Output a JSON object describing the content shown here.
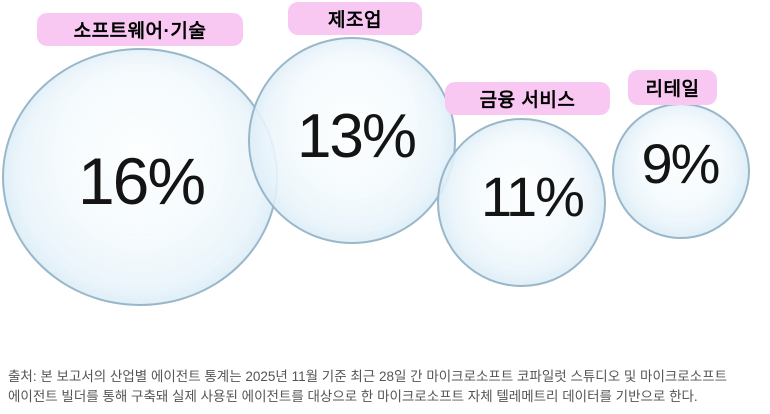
{
  "chart_data": {
    "type": "bubble",
    "title": "",
    "unit": "%",
    "categories": [
      "소프트웨어·기술",
      "제조업",
      "금융 서비스",
      "리테일"
    ],
    "values": [
      16,
      13,
      11,
      9
    ],
    "bubbles": [
      {
        "label": "소프트웨어·기술",
        "value": 16,
        "value_label": "16%"
      },
      {
        "label": "제조업",
        "value": 13,
        "value_label": "13%"
      },
      {
        "label": "금융 서비스",
        "value": 11,
        "value_label": "11%"
      },
      {
        "label": "리테일",
        "value": 9,
        "value_label": "9%"
      }
    ],
    "layout_hints": {
      "legend_position": "pill-labels-above-each-bubble",
      "bubble_size_encodes": "value",
      "grid": false
    }
  },
  "colors": {
    "background": "#ffffff",
    "label_pill_bg": "#f8c7f2",
    "label_text": "#000000",
    "bubble_fill_center": "#fcfeff",
    "bubble_fill_edge": "#d8eaf6",
    "bubble_border": "#90b0c4",
    "value_text": "#141414",
    "source_text": "#555555"
  },
  "source_note": "출처: 본 보고서의 산업별 에이전트 통계는 2025년 11월 기준 최근 28일 간 마이크로소프트 코파일럿 스튜디오 및 마이크로소프트\n에이전트 빌더를 통해 구축돼 실제 사용된 에이전트를 대상으로 한 마이크로소프트 자체 텔레메트리 데이터를 기반으로 한다."
}
